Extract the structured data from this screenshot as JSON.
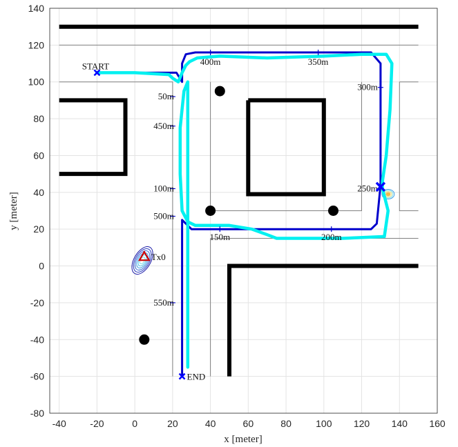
{
  "chart_data": {
    "type": "line",
    "xlabel": "x [meter]",
    "ylabel": "y [meter]",
    "xlim": [
      -45,
      160
    ],
    "ylim": [
      -80,
      140
    ],
    "xticks": [
      -40,
      -20,
      0,
      20,
      40,
      60,
      80,
      100,
      120,
      140,
      160
    ],
    "yticks": [
      -80,
      -60,
      -40,
      -20,
      0,
      20,
      40,
      60,
      80,
      100,
      120,
      140
    ],
    "grid": true,
    "colors": {
      "walls": "#000000",
      "thin_walls": "#808080",
      "planned_route": "#0000cc",
      "estimated_route": "#00f0f0",
      "markers": "#0000ff",
      "tx": "#cc0000"
    },
    "walls": [
      {
        "x": [
          -40,
          150
        ],
        "y": [
          130,
          130
        ]
      },
      {
        "x": [
          -40,
          -5,
          -5,
          -40
        ],
        "y": [
          90,
          90,
          50,
          50
        ]
      },
      {
        "x": [
          60,
          100,
          100,
          60,
          60
        ],
        "y": [
          90,
          90,
          39,
          39,
          90
        ]
      },
      {
        "x": [
          50,
          50,
          150
        ],
        "y": [
          -60,
          0,
          0
        ]
      }
    ],
    "thin_walls": [
      {
        "x": [
          -40,
          150
        ],
        "y": [
          120,
          120
        ]
      },
      {
        "x": [
          -40,
          20,
          20
        ],
        "y": [
          100,
          100,
          -60
        ]
      },
      {
        "x": [
          40,
          40,
          120,
          120
        ],
        "y": [
          100,
          30,
          30,
          100
        ]
      },
      {
        "x": [
          40,
          150
        ],
        "y": [
          15,
          15
        ]
      },
      {
        "x": [
          40,
          40
        ],
        "y": [
          15,
          -60
        ]
      },
      {
        "x": [
          140,
          150
        ],
        "y": [
          100,
          100
        ]
      },
      {
        "x": [
          140,
          140,
          150
        ],
        "y": [
          100,
          30,
          30
        ]
      }
    ],
    "obstacles": [
      {
        "x": 45,
        "y": 95
      },
      {
        "x": 40,
        "y": 30
      },
      {
        "x": 105,
        "y": 30
      },
      {
        "x": 5,
        "y": -40
      }
    ],
    "planned_route": {
      "x": [
        -20,
        22,
        25,
        25,
        25,
        27,
        32,
        125,
        130,
        130,
        128,
        125,
        30,
        25,
        25
      ],
      "y": [
        105,
        105,
        100,
        108,
        110,
        115,
        116,
        116,
        110,
        44,
        23,
        20,
        20,
        25,
        -60
      ]
    },
    "estimated_route": {
      "x": [
        -20,
        0,
        18,
        20,
        23,
        25,
        27,
        29,
        33,
        45,
        70,
        100,
        120,
        133,
        136,
        135,
        133,
        131,
        131,
        132,
        134,
        132,
        110,
        75,
        70,
        62,
        50,
        40,
        32,
        28,
        25,
        24,
        24,
        26,
        28,
        28
      ],
      "y": [
        105,
        105,
        104,
        102,
        100,
        105,
        109,
        111,
        113,
        114,
        113,
        114,
        115,
        115,
        110,
        85,
        60,
        46,
        42,
        38,
        30,
        16,
        15,
        15,
        17,
        20,
        22,
        22,
        22,
        24,
        30,
        50,
        75,
        95,
        100,
        -55
      ]
    },
    "distance_ticks": [
      {
        "label": "50m",
        "x": 20,
        "y": 92
      },
      {
        "label": "100m",
        "x": 20,
        "y": 42
      },
      {
        "label": "150m",
        "x": 45,
        "y": 20
      },
      {
        "label": "200m",
        "x": 104,
        "y": 20
      },
      {
        "label": "250m",
        "x": 130,
        "y": 42
      },
      {
        "label": "300m",
        "x": 130,
        "y": 97
      },
      {
        "label": "350m",
        "x": 97,
        "y": 116
      },
      {
        "label": "400m",
        "x": 40,
        "y": 116
      },
      {
        "label": "450m",
        "x": 20,
        "y": 76
      },
      {
        "label": "500m",
        "x": 20,
        "y": 27
      },
      {
        "label": "550m",
        "x": 20,
        "y": -20
      }
    ],
    "start": {
      "label": "START",
      "x": -20,
      "y": 105
    },
    "end": {
      "label": "END",
      "x": 25,
      "y": -60
    },
    "tx": {
      "label": "Tx0",
      "x": 5,
      "y": 5
    },
    "estimate_marker": {
      "x": 130,
      "y": 43
    }
  }
}
